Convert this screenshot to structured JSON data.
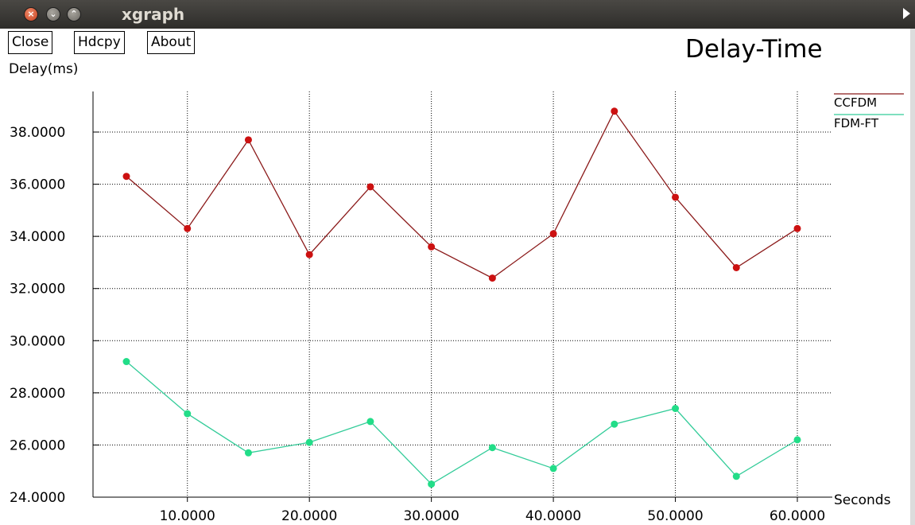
{
  "window": {
    "title": "xgraph"
  },
  "buttons": {
    "close": "Close",
    "hdcpy": "Hdcpy",
    "about": "About"
  },
  "chart_data": {
    "type": "line",
    "title": "Delay-Time",
    "xlabel": "Seconds",
    "ylabel": "Delay(ms)",
    "xlim": [
      5,
      60
    ],
    "ylim": [
      24,
      39
    ],
    "grid": true,
    "legend_position": "top-right",
    "x_ticks": [
      10,
      20,
      30,
      40,
      50,
      60
    ],
    "x_tick_labels": [
      "10.0000",
      "20.0000",
      "30.0000",
      "40.0000",
      "50.0000",
      "60.0000"
    ],
    "y_ticks": [
      24,
      26,
      28,
      30,
      32,
      34,
      36,
      38
    ],
    "y_tick_labels": [
      "24.0000",
      "26.0000",
      "28.0000",
      "30.0000",
      "32.0000",
      "34.0000",
      "36.0000",
      "38.0000"
    ],
    "x": [
      5,
      10,
      15,
      20,
      25,
      30,
      35,
      40,
      45,
      50,
      55,
      60
    ],
    "series": [
      {
        "name": "CCFDM",
        "color": "#cc1111",
        "line_color": "#8b1a1a",
        "values": [
          36.3,
          34.3,
          37.7,
          33.3,
          35.9,
          33.6,
          32.4,
          34.1,
          38.8,
          35.5,
          32.8,
          34.3
        ]
      },
      {
        "name": "FDM-FT",
        "color": "#22dd88",
        "line_color": "#33cc99",
        "values": [
          29.2,
          27.2,
          25.7,
          26.1,
          26.9,
          24.5,
          25.9,
          25.1,
          26.8,
          27.4,
          24.8,
          26.2
        ]
      }
    ]
  }
}
